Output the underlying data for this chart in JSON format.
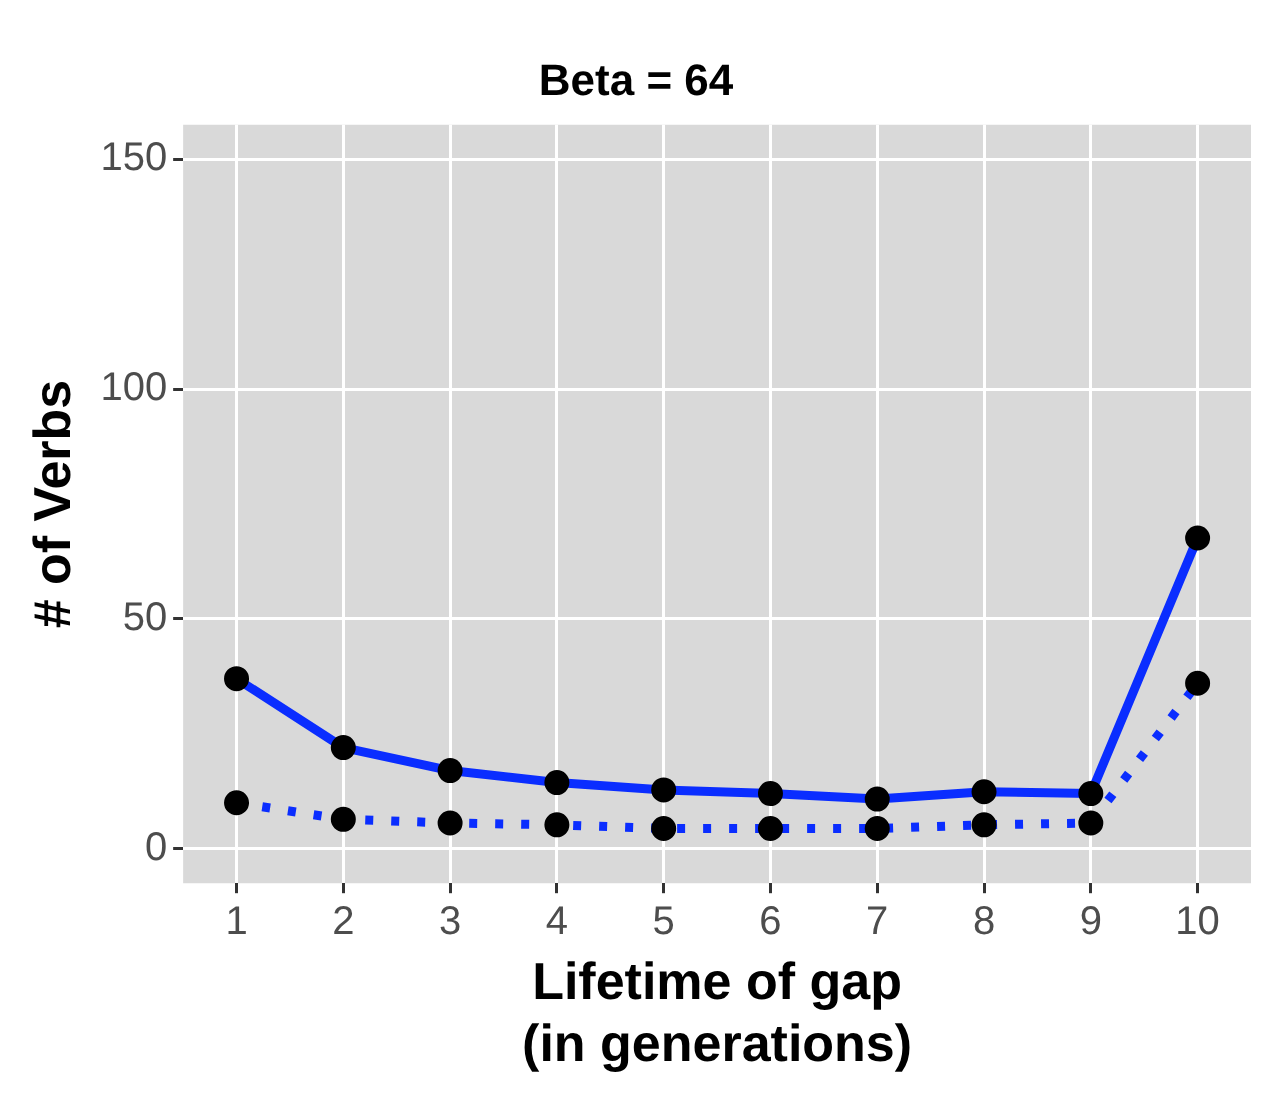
{
  "chart_data": {
    "type": "line",
    "title": "Beta = 64",
    "xlabel": "Lifetime of gap\n(in generations)",
    "ylabel": "# of Verbs",
    "categories": [
      "1",
      "2",
      "3",
      "4",
      "5",
      "6",
      "7",
      "8",
      "9",
      "10"
    ],
    "series": [
      {
        "color": "#0a2dff",
        "line_style": "solid",
        "values": [
          37,
          22,
          17,
          14.4,
          12.8,
          12,
          10.8,
          12.4,
          12,
          67.6
        ]
      },
      {
        "color": "#0a2dff",
        "line_style": "dotted",
        "values": [
          10,
          6.4,
          5.6,
          5.2,
          4.4,
          4.4,
          4.4,
          5.2,
          5.6,
          36
        ]
      }
    ],
    "ylim": [
      -7.5,
      157.5
    ],
    "yticks": [
      0,
      50,
      100,
      150
    ],
    "grid": true,
    "marker": "circle",
    "legend": false
  }
}
